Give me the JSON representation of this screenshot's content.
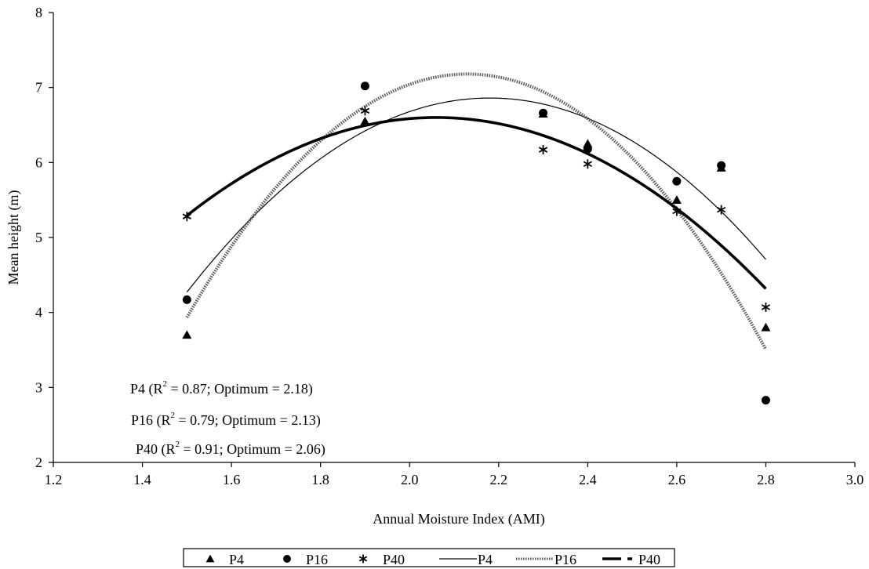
{
  "chart_data": {
    "type": "scatter",
    "xlabel": "Annual Moisture Index (AMI)",
    "ylabel": "Mean height (m)",
    "xlim": [
      1.2,
      3.0
    ],
    "ylim": [
      2,
      8
    ],
    "xticks": [
      "1.2",
      "1.4",
      "1.6",
      "1.8",
      "2.0",
      "2.2",
      "2.4",
      "2.6",
      "2.8",
      "3.0"
    ],
    "yticks": [
      "2",
      "3",
      "4",
      "5",
      "6",
      "7",
      "8"
    ],
    "grid": false,
    "legend_position": "bottom",
    "series": [
      {
        "name": "P4",
        "kind": "points",
        "marker": "triangle",
        "points": [
          [
            1.5,
            3.7
          ],
          [
            1.9,
            6.55
          ],
          [
            2.3,
            6.65
          ],
          [
            2.4,
            6.25
          ],
          [
            2.6,
            5.5
          ],
          [
            2.7,
            5.93
          ],
          [
            2.8,
            3.8
          ]
        ]
      },
      {
        "name": "P16",
        "kind": "points",
        "marker": "circle",
        "points": [
          [
            1.5,
            4.17
          ],
          [
            1.9,
            7.02
          ],
          [
            2.3,
            6.66
          ],
          [
            2.4,
            6.18
          ],
          [
            2.6,
            5.75
          ],
          [
            2.7,
            5.96
          ],
          [
            2.8,
            2.83
          ]
        ]
      },
      {
        "name": "P40",
        "kind": "points",
        "marker": "asterisk",
        "points": [
          [
            1.5,
            5.28
          ],
          [
            1.9,
            6.69
          ],
          [
            2.3,
            6.17
          ],
          [
            2.4,
            5.98
          ],
          [
            2.6,
            5.35
          ],
          [
            2.7,
            5.37
          ],
          [
            2.8,
            4.07
          ]
        ]
      },
      {
        "name": "P4",
        "kind": "curve",
        "style": "thin-solid",
        "quadratic": {
          "peak_x": 2.18,
          "peak_y": 6.86,
          "a": -5.6
        },
        "x_range": [
          1.5,
          2.8
        ]
      },
      {
        "name": "P16",
        "kind": "curve",
        "style": "dotted-double",
        "quadratic": {
          "peak_x": 2.13,
          "peak_y": 7.18,
          "a": -8.18
        },
        "x_range": [
          1.5,
          2.8
        ]
      },
      {
        "name": "P40",
        "kind": "curve",
        "style": "thick-solid",
        "quadratic": {
          "peak_x": 2.06,
          "peak_y": 6.6,
          "a": -4.17
        },
        "x_range": [
          1.5,
          2.8
        ]
      }
    ],
    "annotations": [
      {
        "prefix": "P4  (R",
        "sup": "2",
        "suffix": " = 0.87; Optimum = 2.18)"
      },
      {
        "prefix": "P16  (R",
        "sup": "2",
        "suffix": " = 0.79; Optimum = 2.13)"
      },
      {
        "prefix": "P40 (R",
        "sup": "2",
        "suffix": " = 0.91; Optimum = 2.06)"
      }
    ]
  }
}
